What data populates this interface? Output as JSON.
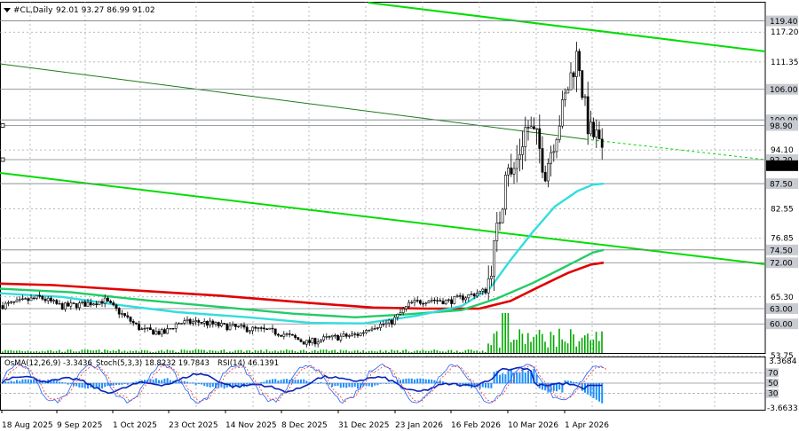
{
  "header": {
    "symbol": "#CL,Daily",
    "ohlc": "92.01 93.27 86.99 91.02"
  },
  "sub_header": {
    "osma": "OsMA(12,26,9) -3.3436",
    "stoch": "Stoch(5,3,3) 18.8232 19.7843",
    "rsi": "RSI(14) 46.1391"
  },
  "colors": {
    "ma_red": "#e00000",
    "ma_green": "#22cc66",
    "ma_cyan": "#33dddd",
    "trend": "#00dd00",
    "candle": "#000000",
    "volume": "#00aa00",
    "hist": "#1e90ff",
    "rsi": "#0a24b8",
    "stoch_main": "#1e62ff",
    "stoch_signal": "#ff3030"
  },
  "chart_data": [
    {
      "type": "candlestick",
      "symbol": "#CL",
      "timeframe": "Daily",
      "last_ohlc": {
        "open": 92.01,
        "high": 93.27,
        "low": 86.99,
        "close": 91.02
      },
      "ylim": [
        53.75,
        121.5
      ],
      "price_ticks": [
        117.2,
        111.35,
        94.1,
        82.55,
        76.85,
        65.3,
        53.75
      ],
      "level_labels": [
        {
          "value": 119.4,
          "label": "119.40",
          "highlight": true
        },
        {
          "value": 106.0,
          "label": "106.00",
          "highlight": true
        },
        {
          "value": 100.0,
          "label": "100.00",
          "highlight": true
        },
        {
          "value": 98.9,
          "label": "98.90",
          "highlight": true
        },
        {
          "value": 92.2,
          "label": "92.20",
          "highlight": true
        },
        {
          "value": 91.02,
          "label": "91.02",
          "highlight": false,
          "dark": true
        },
        {
          "value": 87.5,
          "label": "87.50",
          "highlight": true
        },
        {
          "value": 74.5,
          "label": "74.50",
          "highlight": true
        },
        {
          "value": 72.0,
          "label": "72.00",
          "highlight": true
        },
        {
          "value": 63.0,
          "label": "63.00",
          "highlight": true
        },
        {
          "value": 60.0,
          "label": "60.00",
          "highlight": true
        }
      ],
      "date_ticks": [
        "18 Aug 2025",
        "9 Sep 2025",
        "1 Oct 2025",
        "23 Oct 2025",
        "14 Nov 2025",
        "8 Dec 2025",
        "31 Dec 2025",
        "23 Jan 2026",
        "16 Feb 2026",
        "10 Mar 2026",
        "1 Apr 2026"
      ],
      "grid": true
    },
    {
      "type": "indicators",
      "osma": {
        "params": "12,26,9",
        "value": -3.3436
      },
      "stochastic": {
        "params": "5,3,3",
        "main": 18.8232,
        "signal": 19.7843
      },
      "rsi": {
        "params": "14",
        "value": 46.1391
      },
      "ylim": [
        -3.6633,
        3.3684
      ],
      "axis_labels": [
        "3.3684",
        "70",
        "50",
        "30",
        "-3.6633"
      ]
    }
  ]
}
